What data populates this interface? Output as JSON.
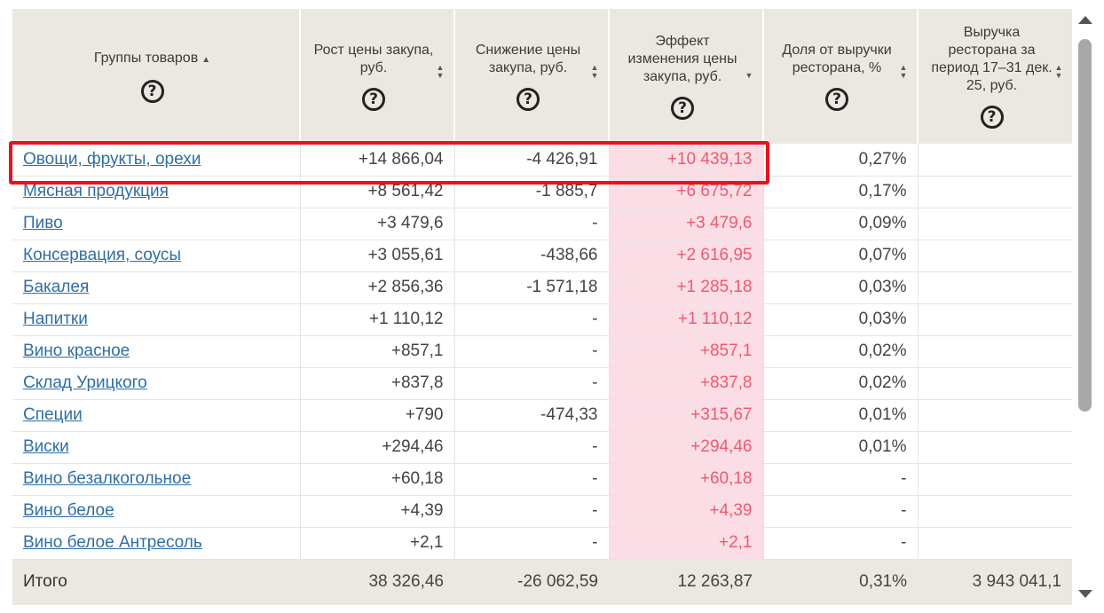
{
  "header": {
    "columns": [
      {
        "label": "Группы товаров"
      },
      {
        "label": "Рост цены закупа, руб."
      },
      {
        "label": "Снижение цены закупа, руб."
      },
      {
        "label": "Эффект изменения цены закупа, руб."
      },
      {
        "label": "Доля от выручки ресторана, %"
      },
      {
        "label": "Выручка ресторана за период 17–31 дек. 25, руб."
      }
    ],
    "help_glyph": "?",
    "sort_up_glyph": "▲",
    "sort_down_glyph": "▼"
  },
  "rows": [
    {
      "name": "Овощи, фрукты, орехи",
      "increase": "+14 866,04",
      "decrease": "-4 426,91",
      "effect": "+10 439,13",
      "share": "0,27%",
      "revenue": ""
    },
    {
      "name": "Мясная продукция",
      "increase": "+8 561,42",
      "decrease": "-1 885,7",
      "effect": "+6 675,72",
      "share": "0,17%",
      "revenue": ""
    },
    {
      "name": "Пиво",
      "increase": "+3 479,6",
      "decrease": "-",
      "effect": "+3 479,6",
      "share": "0,09%",
      "revenue": ""
    },
    {
      "name": "Консервация, соусы",
      "increase": "+3 055,61",
      "decrease": "-438,66",
      "effect": "+2 616,95",
      "share": "0,07%",
      "revenue": ""
    },
    {
      "name": "Бакалея",
      "increase": "+2 856,36",
      "decrease": "-1 571,18",
      "effect": "+1 285,18",
      "share": "0,03%",
      "revenue": ""
    },
    {
      "name": "Напитки",
      "increase": "+1 110,12",
      "decrease": "-",
      "effect": "+1 110,12",
      "share": "0,03%",
      "revenue": ""
    },
    {
      "name": "Вино красное",
      "increase": "+857,1",
      "decrease": "-",
      "effect": "+857,1",
      "share": "0,02%",
      "revenue": ""
    },
    {
      "name": "Склад Урицкого",
      "increase": "+837,8",
      "decrease": "-",
      "effect": "+837,8",
      "share": "0,02%",
      "revenue": ""
    },
    {
      "name": "Специи",
      "increase": "+790",
      "decrease": "-474,33",
      "effect": "+315,67",
      "share": "0,01%",
      "revenue": ""
    },
    {
      "name": "Виски",
      "increase": "+294,46",
      "decrease": "-",
      "effect": "+294,46",
      "share": "0,01%",
      "revenue": ""
    },
    {
      "name": "Вино безалкогольное",
      "increase": "+60,18",
      "decrease": "-",
      "effect": "+60,18",
      "share": "-",
      "revenue": ""
    },
    {
      "name": "Вино белое",
      "increase": "+4,39",
      "decrease": "-",
      "effect": "+4,39",
      "share": "-",
      "revenue": ""
    },
    {
      "name": "Вино белое Антресоль",
      "increase": "+2,1",
      "decrease": "-",
      "effect": "+2,1",
      "share": "-",
      "revenue": ""
    }
  ],
  "total": {
    "name": "Итого",
    "increase": "38 326,46",
    "decrease": "-26 062,59",
    "effect": "12 263,87",
    "share": "0,31%",
    "revenue": "3 943 041,1"
  },
  "colors": {
    "header_bg": "#ebe8e1",
    "link": "#2f6ea6",
    "effect_bg": "#fbdde6",
    "effect_text": "#ee5a6e",
    "highlight_border": "#e8121b"
  }
}
